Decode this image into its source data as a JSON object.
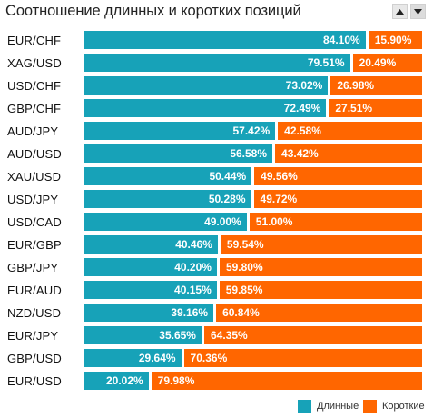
{
  "widget": {
    "title": "Соотношение длинных и коротких позиций",
    "up_icon": "triangle-up-icon",
    "down_icon": "triangle-down-icon"
  },
  "colors": {
    "long": "#17a2b8",
    "short": "#ff6600"
  },
  "legend": {
    "long_label": "Длинные",
    "short_label": "Короткие"
  },
  "chart_data": {
    "type": "bar",
    "stacked": true,
    "orientation": "horizontal",
    "categories": [
      "EUR/CHF",
      "XAG/USD",
      "USD/CHF",
      "GBP/CHF",
      "AUD/JPY",
      "AUD/USD",
      "XAU/USD",
      "USD/JPY",
      "USD/CAD",
      "EUR/GBP",
      "GBP/JPY",
      "EUR/AUD",
      "NZD/USD",
      "EUR/JPY",
      "GBP/USD",
      "EUR/USD"
    ],
    "series": [
      {
        "name": "Длинные",
        "values": [
          84.1,
          79.51,
          73.02,
          72.49,
          57.42,
          56.58,
          50.44,
          50.28,
          49.0,
          40.46,
          40.2,
          40.15,
          39.16,
          35.65,
          29.64,
          20.02
        ]
      },
      {
        "name": "Короткие",
        "values": [
          15.9,
          20.49,
          26.98,
          27.51,
          42.58,
          43.42,
          49.56,
          49.72,
          51.0,
          59.54,
          59.8,
          59.85,
          60.84,
          64.35,
          70.36,
          79.98
        ]
      }
    ],
    "long_labels": [
      "84.10%",
      "79.51%",
      "73.02%",
      "72.49%",
      "57.42%",
      "56.58%",
      "50.44%",
      "50.28%",
      "49.00%",
      "40.46%",
      "40.20%",
      "40.15%",
      "39.16%",
      "35.65%",
      "29.64%",
      "20.02%"
    ],
    "short_labels": [
      "15.90%",
      "20.49%",
      "26.98%",
      "27.51%",
      "42.58%",
      "43.42%",
      "49.56%",
      "49.72%",
      "51.00%",
      "59.54%",
      "59.80%",
      "59.85%",
      "60.84%",
      "64.35%",
      "70.36%",
      "79.98%"
    ],
    "xlim": [
      0,
      100
    ],
    "legend_position": "bottom-right"
  }
}
